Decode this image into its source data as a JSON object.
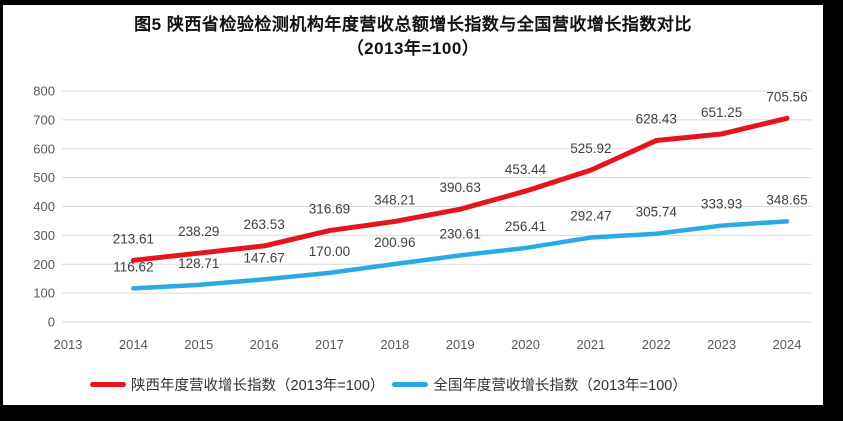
{
  "chart_data": {
    "type": "line",
    "title": "图5  陕西省检验检测机构年度营收总额增长指数与全国营收增长指数对比",
    "subtitle": "（2013年=100）",
    "categories": [
      "2013",
      "2014",
      "2015",
      "2016",
      "2017",
      "2018",
      "2019",
      "2020",
      "2021",
      "2022",
      "2023",
      "2024"
    ],
    "series": [
      {
        "name": "陕西年度营收增长指数（2013年=100）",
        "color": "#e8141c",
        "values": [
          null,
          213.61,
          238.29,
          263.53,
          316.69,
          348.21,
          390.63,
          453.44,
          525.92,
          628.43,
          651.25,
          705.56
        ]
      },
      {
        "name": "全国年度营收增长指数（2013年=100）",
        "color": "#29abe2",
        "values": [
          null,
          116.62,
          128.71,
          147.67,
          170.0,
          200.96,
          230.61,
          256.41,
          292.47,
          305.74,
          333.93,
          348.65
        ]
      }
    ],
    "xlabel": "",
    "ylabel": "",
    "ylim": [
      0,
      800
    ],
    "yticks": [
      0,
      100,
      200,
      300,
      400,
      500,
      600,
      700,
      800
    ],
    "grid": true,
    "legend_position": "bottom",
    "data_labels": true,
    "data_label_decimals": 2,
    "colors": {
      "gridline": "#d9d9d9",
      "axis_tick_label": "#595959",
      "data_label": "#404040",
      "title": "#111111",
      "background": "#ffffff",
      "frame": "#000000"
    }
  }
}
